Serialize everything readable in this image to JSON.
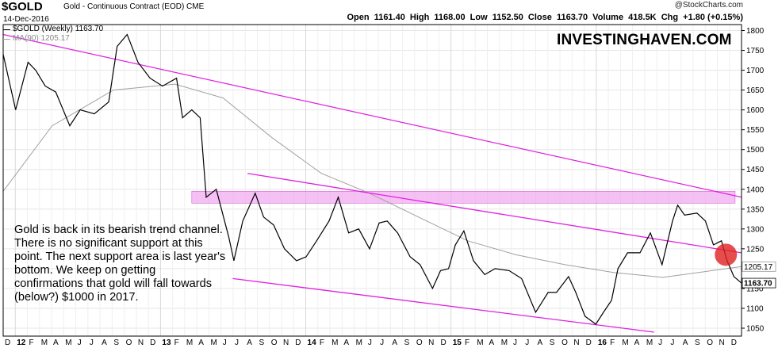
{
  "header": {
    "symbol": "$GOLD",
    "description": "Gold - Continuous Contract (EOD)  CME",
    "date": "14-Dec-2016",
    "copyright": "@StockCharts.com",
    "open_label": "Open",
    "open": "1161.40",
    "high_label": "High",
    "high": "1168.00",
    "low_label": "Low",
    "low": "1152.50",
    "close_label": "Close",
    "close": "1163.70",
    "volume_label": "Volume",
    "volume": "418.5K",
    "chg_label": "Chg",
    "chg": "+1.80 (+0.15%)"
  },
  "legend": {
    "price_label": "$GOLD (Weekly) 1163.70",
    "ma_label": "MA(90) 1205.17"
  },
  "brand": "INVESTINGHAVEN.COM",
  "annotation": "Gold is back in its bearish trend channel. There is no significant support at this point. The next support area is last year's bottom. We keep on getting confirmations that gold will fall towards (below?) $1000 in 2017.",
  "colors": {
    "price": "#000000",
    "ma": "#a0a0a0",
    "trendline": "#e020e0",
    "zone": "#f0a0f0",
    "highlight": "#e02020",
    "grid": "#e6e6e6"
  },
  "chart_data": {
    "type": "line",
    "title": "",
    "xlabel": "",
    "ylabel": "",
    "frequency": "weekly",
    "ylim": [
      1030,
      1815
    ],
    "x_range": [
      "2011-12-01",
      "2016-12-14"
    ],
    "yaxis": {
      "side": "right",
      "ticks": [
        1050,
        1100,
        1150,
        1200,
        1250,
        1300,
        1350,
        1400,
        1450,
        1500,
        1550,
        1600,
        1650,
        1700,
        1750,
        1800
      ]
    },
    "xaxis": {
      "labels": [
        "D",
        "12",
        "F",
        "M",
        "A",
        "M",
        "J",
        "J",
        "A",
        "S",
        "O",
        "N",
        "D",
        "13",
        "F",
        "M",
        "A",
        "M",
        "J",
        "J",
        "A",
        "S",
        "O",
        "N",
        "D",
        "14",
        "F",
        "M",
        "A",
        "M",
        "J",
        "J",
        "A",
        "S",
        "O",
        "N",
        "D",
        "15",
        "F",
        "M",
        "A",
        "M",
        "J",
        "J",
        "A",
        "S",
        "O",
        "N",
        "D",
        "16",
        "F",
        "M",
        "A",
        "M",
        "J",
        "J",
        "A",
        "S",
        "O",
        "N",
        "D"
      ],
      "year_labels": [
        "12",
        "13",
        "14",
        "15",
        "16"
      ]
    },
    "value_labels": [
      {
        "value": 1205.17,
        "text": "1205.17",
        "style": "ma"
      },
      {
        "value": 1163.7,
        "text": "1163.70",
        "style": "price"
      }
    ],
    "series": [
      {
        "name": "$GOLD (Weekly)",
        "x": [
          "2011-12-01",
          "2012-01-01",
          "2012-02-01",
          "2012-02-20",
          "2012-03-15",
          "2012-04-10",
          "2012-05-15",
          "2012-06-10",
          "2012-07-15",
          "2012-08-20",
          "2012-09-10",
          "2012-10-05",
          "2012-11-01",
          "2012-12-01",
          "2013-01-01",
          "2013-02-05",
          "2013-02-20",
          "2013-03-15",
          "2013-04-05",
          "2013-04-20",
          "2013-05-15",
          "2013-06-15",
          "2013-06-28",
          "2013-07-20",
          "2013-08-20",
          "2013-09-10",
          "2013-10-05",
          "2013-11-01",
          "2013-12-01",
          "2013-12-25",
          "2014-01-20",
          "2014-02-20",
          "2014-03-15",
          "2014-04-10",
          "2014-05-05",
          "2014-06-01",
          "2014-06-25",
          "2014-07-15",
          "2014-08-10",
          "2014-09-10",
          "2014-10-05",
          "2014-11-05",
          "2014-11-25",
          "2014-12-15",
          "2015-01-01",
          "2015-01-22",
          "2015-02-15",
          "2015-03-15",
          "2015-04-10",
          "2015-05-15",
          "2015-06-15",
          "2015-07-20",
          "2015-08-20",
          "2015-09-10",
          "2015-10-10",
          "2015-10-28",
          "2015-11-20",
          "2015-12-17",
          "2016-01-05",
          "2016-01-25",
          "2016-02-10",
          "2016-03-05",
          "2016-04-05",
          "2016-05-01",
          "2016-05-30",
          "2016-06-25",
          "2016-07-08",
          "2016-07-25",
          "2016-08-25",
          "2016-09-15",
          "2016-10-05",
          "2016-10-25",
          "2016-11-08",
          "2016-11-25",
          "2016-12-14"
        ],
        "y": [
          1740,
          1600,
          1720,
          1700,
          1660,
          1645,
          1560,
          1600,
          1590,
          1620,
          1760,
          1790,
          1720,
          1680,
          1660,
          1680,
          1580,
          1600,
          1580,
          1380,
          1400,
          1280,
          1220,
          1320,
          1390,
          1330,
          1310,
          1250,
          1220,
          1230,
          1270,
          1320,
          1380,
          1290,
          1300,
          1250,
          1315,
          1320,
          1290,
          1230,
          1210,
          1150,
          1195,
          1200,
          1260,
          1295,
          1220,
          1185,
          1200,
          1195,
          1175,
          1090,
          1140,
          1140,
          1180,
          1140,
          1080,
          1060,
          1090,
          1120,
          1200,
          1240,
          1240,
          1290,
          1210,
          1320,
          1360,
          1335,
          1340,
          1320,
          1260,
          1270,
          1220,
          1180,
          1163.7
        ]
      },
      {
        "name": "MA(90)",
        "x": [
          "2011-12-01",
          "2012-04-01",
          "2012-09-01",
          "2013-02-01",
          "2013-06-01",
          "2013-10-01",
          "2014-02-01",
          "2014-06-01",
          "2014-10-01",
          "2015-02-01",
          "2015-06-01",
          "2015-10-01",
          "2016-02-01",
          "2016-06-01",
          "2016-10-01",
          "2016-12-14"
        ],
        "y": [
          1395,
          1560,
          1650,
          1665,
          1630,
          1530,
          1440,
          1390,
          1330,
          1270,
          1235,
          1210,
          1190,
          1178,
          1195,
          1205.17
        ]
      }
    ],
    "trendlines": [
      {
        "name": "upper-channel",
        "x": [
          "2011-12-01",
          "2016-12-14"
        ],
        "y": [
          1790,
          1380
        ]
      },
      {
        "name": "middle-channel",
        "x": [
          "2013-08-01",
          "2016-12-14"
        ],
        "y": [
          1440,
          1240
        ]
      },
      {
        "name": "lower-channel",
        "x": [
          "2013-06-25",
          "2016-05-10"
        ],
        "y": [
          1175,
          1040
        ]
      }
    ],
    "zone": {
      "x": [
        "2013-03-15",
        "2016-11-28"
      ],
      "y": [
        1365,
        1395
      ]
    },
    "highlight": {
      "x": "2016-11-05",
      "y": 1235
    }
  }
}
